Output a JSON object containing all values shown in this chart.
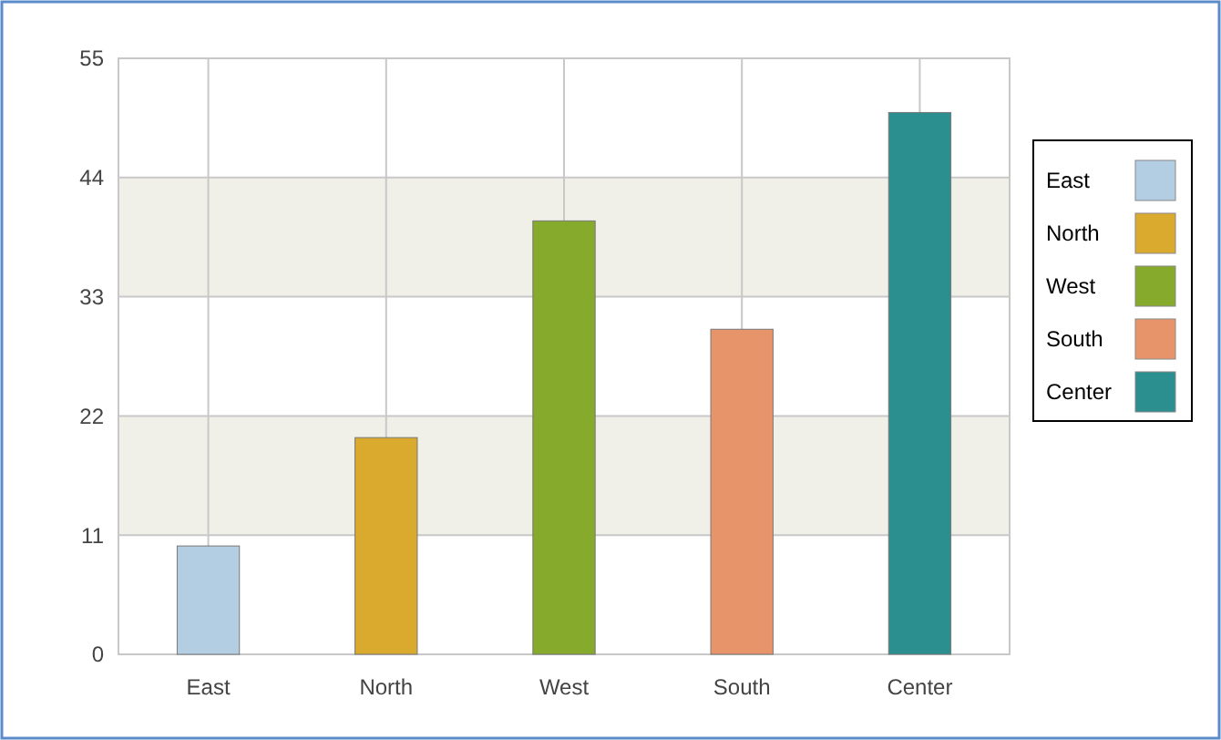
{
  "chart_data": {
    "type": "bar",
    "categories": [
      "East",
      "North",
      "West",
      "South",
      "Center"
    ],
    "series": [
      {
        "name": "East",
        "color": "#b3cde3",
        "values": [
          10,
          null,
          null,
          null,
          null
        ]
      },
      {
        "name": "North",
        "color": "#d9aa2e",
        "values": [
          null,
          20,
          null,
          null,
          null
        ]
      },
      {
        "name": "West",
        "color": "#86aa2c",
        "values": [
          null,
          null,
          40,
          null,
          null
        ]
      },
      {
        "name": "South",
        "color": "#e8946a",
        "values": [
          null,
          null,
          null,
          30,
          null
        ]
      },
      {
        "name": "Center",
        "color": "#2b8f8f",
        "values": [
          null,
          null,
          null,
          null,
          50
        ]
      }
    ],
    "ylim": [
      0,
      55
    ],
    "yticks": [
      0,
      11,
      22,
      33,
      44,
      55
    ],
    "grid": true,
    "legend": "right",
    "bands": [
      {
        "axis": "y",
        "from": 11,
        "to": 22,
        "color": "#f0f0e8"
      },
      {
        "axis": "y",
        "from": 33,
        "to": 44,
        "color": "#f0f0e8"
      }
    ]
  }
}
